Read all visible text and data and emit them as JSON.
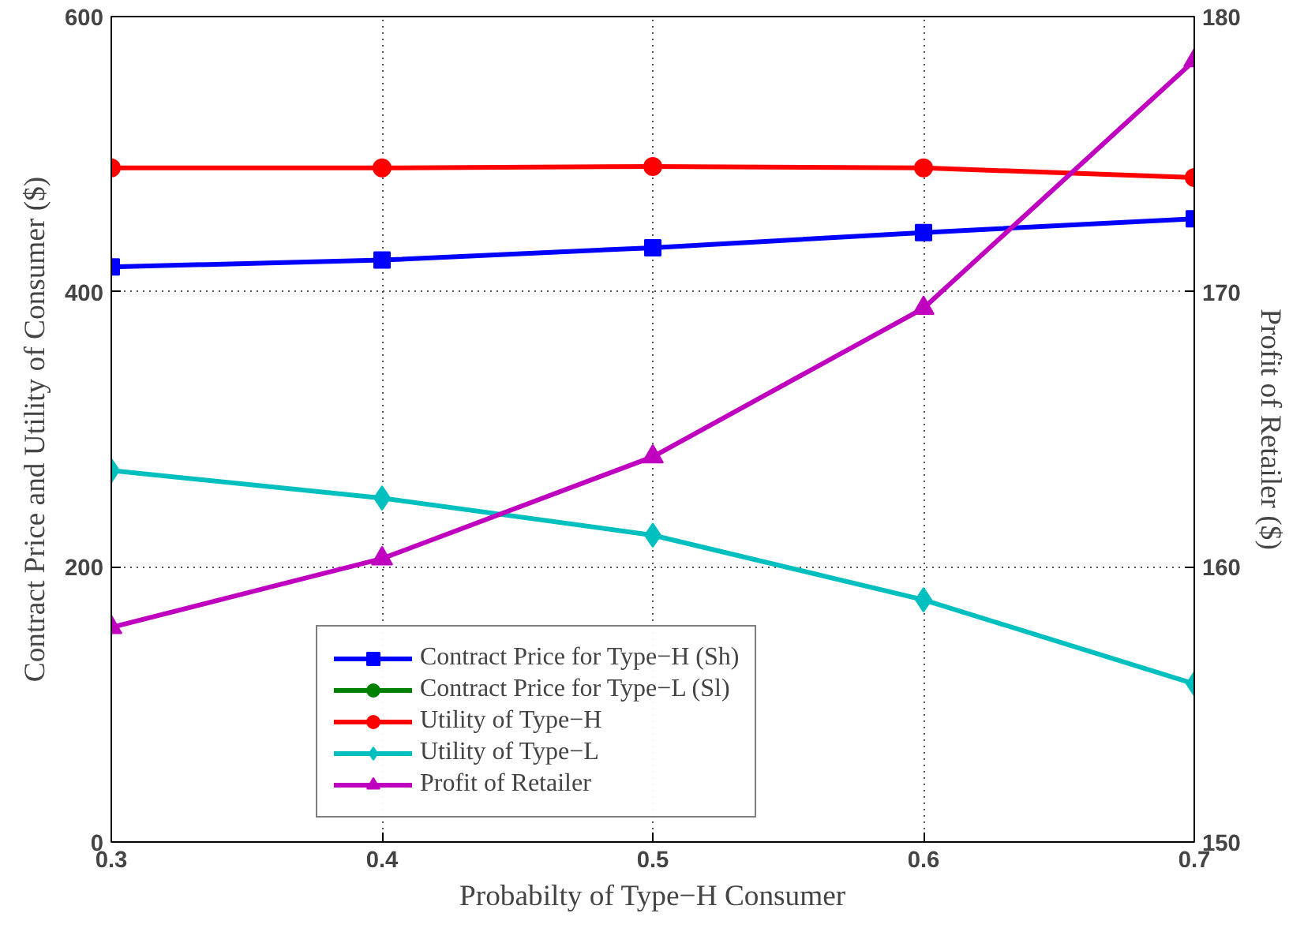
{
  "chart_data": {
    "type": "line",
    "xlabel": "Probabilty of Type−H Consumer",
    "ylabel": "Contract Price and Utility of Consumer ($)",
    "y2label": "Profit of Retailer ($)",
    "x": [
      0.3,
      0.4,
      0.5,
      0.6,
      0.7
    ],
    "xlim": [
      0.3,
      0.7
    ],
    "xticks": [
      0.3,
      0.4,
      0.5,
      0.6,
      0.7
    ],
    "ylim": [
      0,
      600
    ],
    "yticks": [
      0,
      200,
      400,
      600
    ],
    "y2lim": [
      150,
      180
    ],
    "y2ticks": [
      150,
      160,
      170,
      180
    ],
    "grid": true,
    "legend": "bottom",
    "line_style": "solid",
    "series": [
      {
        "name": "Contract Price for Type−H (Sh)",
        "color": "#0000ff",
        "marker": "square",
        "values": [
          418,
          423,
          432,
          443,
          453
        ]
      },
      {
        "name": "Contract Price for Type−L (Sl)",
        "color": "#008000",
        "marker": "circle",
        "values": [
          null,
          null,
          null,
          null,
          null
        ]
      },
      {
        "name": "Utility of Type−H",
        "color": "#ff0000",
        "marker": "circle",
        "values": [
          490,
          490,
          491,
          490,
          483
        ]
      },
      {
        "name": "Utility of Type−L",
        "color": "#00bfbf",
        "marker": "diamond",
        "values": [
          270,
          250,
          223,
          176,
          115
        ]
      },
      {
        "name": "Profit of Retailer",
        "color": "#bf00bf",
        "marker": "triangle",
        "axis": "y2",
        "values": [
          157.8,
          160.3,
          164.0,
          169.4,
          178.4
        ]
      }
    ]
  }
}
